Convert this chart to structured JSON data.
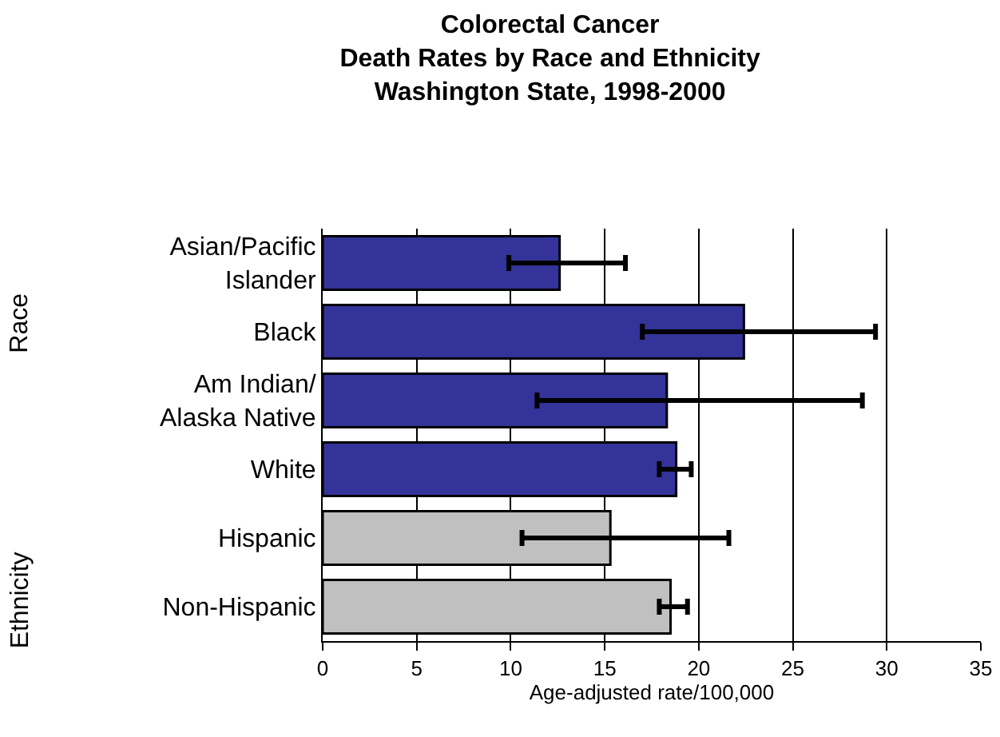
{
  "chart_data": {
    "type": "bar",
    "orientation": "horizontal",
    "title": "Colorectal Cancer\nDeath Rates by Race and Ethnicity\nWashington State, 1998-2000",
    "xlabel": "Age-adjusted rate/100,000",
    "categories": [
      "Asian/Pacific\nIslander",
      "Black",
      "Am Indian/\nAlaska Native",
      "White",
      "Hispanic",
      "Non-Hispanic"
    ],
    "values": [
      12.6,
      22.4,
      18.3,
      18.8,
      15.3,
      18.5
    ],
    "colors": [
      "#333399",
      "#333399",
      "#333399",
      "#333399",
      "#c0c0c0",
      "#c0c0c0"
    ],
    "errors": [
      [
        9.9,
        16.1
      ],
      [
        17.0,
        29.4
      ],
      [
        11.4,
        28.7
      ],
      [
        17.9,
        19.6
      ],
      [
        10.6,
        21.6
      ],
      [
        17.9,
        19.4
      ]
    ],
    "xlim": [
      0,
      35
    ],
    "xticks": [
      0,
      5,
      10,
      15,
      20,
      25,
      30,
      35
    ],
    "grid": "x",
    "annotations": [
      "Race",
      "Ethnicity"
    ]
  }
}
